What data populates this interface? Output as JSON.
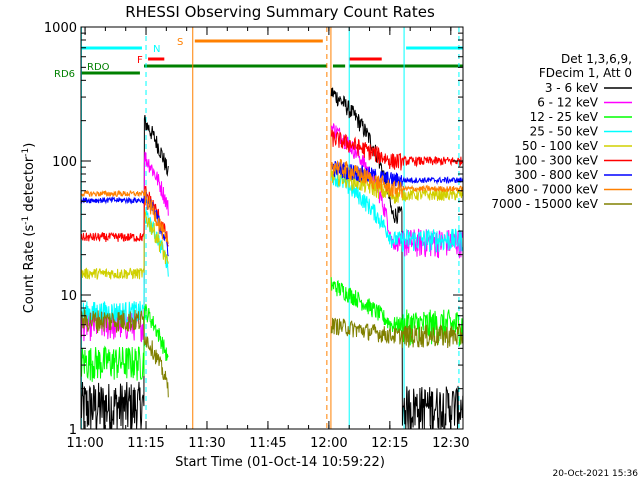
{
  "chart_data": {
    "type": "line",
    "title": "RHESSI Observing Summary Count Rates",
    "xlabel": "Start Time (01-Oct-14 10:59:22)",
    "ylabel_main": "Count Rate (s",
    "ylabel_sup1": "-1",
    "ylabel_mid": " detector",
    "ylabel_sup2": "-1",
    "ylabel_end": ")",
    "x_range_minutes": [
      0,
      94
    ],
    "ylim": [
      1,
      1000
    ],
    "log_y": true,
    "x_ticks": [
      {
        "v": 1,
        "label": "11:00"
      },
      {
        "v": 16,
        "label": "11:15"
      },
      {
        "v": 31,
        "label": "11:30"
      },
      {
        "v": 46,
        "label": "11:45"
      },
      {
        "v": 61,
        "label": "12:00"
      },
      {
        "v": 76,
        "label": "12:15"
      },
      {
        "v": 91,
        "label": "12:30"
      }
    ],
    "y_ticks": [
      {
        "v": 1,
        "label": "1"
      },
      {
        "v": 10,
        "label": "10"
      },
      {
        "v": 100,
        "label": "100"
      },
      {
        "v": 1000,
        "label": "1000"
      }
    ],
    "legend": {
      "header1": "Det 1,3,6,9,",
      "header2": "FDecim 1, Att 0",
      "placement": "right"
    },
    "series": [
      {
        "name": "3 - 6 keV",
        "color": "#000000",
        "base": 1.5,
        "noise": 0.5,
        "peak1": 200,
        "peak2": 330,
        "end2": 40
      },
      {
        "name": "6 - 12 keV",
        "color": "#ff00ff",
        "base": 6.0,
        "noise": 0.25,
        "peak1": 110,
        "peak2": 180,
        "end2": 25
      },
      {
        "name": "12 - 25 keV",
        "color": "#00ff00",
        "base": 3.2,
        "noise": 0.3,
        "peak1": 8,
        "peak2": 12,
        "end2": 6
      },
      {
        "name": "25 - 50 keV",
        "color": "#00ffff",
        "base": 7.5,
        "noise": 0.2,
        "peak1": 40,
        "peak2": 80,
        "end2": 26
      },
      {
        "name": "50 - 100 keV",
        "color": "#d0d000",
        "base": 14.5,
        "noise": 0.1,
        "peak1": 40,
        "peak2": 80,
        "end2": 56
      },
      {
        "name": "100 - 300 keV",
        "color": "#ff0000",
        "base": 27,
        "noise": 0.08,
        "peak1": 60,
        "peak2": 150,
        "end2": 100
      },
      {
        "name": "300 - 800 keV",
        "color": "#0000ff",
        "base": 51,
        "noise": 0.05,
        "peak1": 55,
        "peak2": 90,
        "end2": 72
      },
      {
        "name": "800 - 7000 keV",
        "color": "#ff8000",
        "base": 57,
        "noise": 0.05,
        "peak1": 55,
        "peak2": 95,
        "end2": 62
      },
      {
        "name": "7000 - 15000 keV",
        "color": "#808000",
        "base": 6.5,
        "noise": 0.2,
        "peak1": 5,
        "peak2": 6,
        "end2": 5
      }
    ],
    "flags": [
      {
        "label": "RD6",
        "color": "#008000",
        "segments": [
          [
            0,
            14.5
          ]
        ]
      },
      {
        "label": "RDO",
        "color": "#008000",
        "segments": [
          [
            15.5,
            60.5
          ],
          [
            62,
            65
          ],
          [
            66,
            94
          ]
        ]
      },
      {
        "label": "F",
        "color": "#ff0000",
        "segments": [
          [
            16.5,
            20.5
          ],
          [
            66,
            74
          ]
        ]
      },
      {
        "label": "N",
        "color": "#00ffff",
        "segments": [
          [
            0,
            15
          ],
          [
            80,
            94
          ]
        ]
      },
      {
        "label": "S",
        "color": "#ff8000",
        "segments": [
          [
            28,
            59.5
          ]
        ]
      }
    ],
    "vlines": [
      {
        "x": 0.1,
        "color": "#00ffff",
        "style": "solid"
      },
      {
        "x": 16,
        "color": "#00ffff",
        "style": "dashed"
      },
      {
        "x": 27.5,
        "color": "#ff8000",
        "style": "solid"
      },
      {
        "x": 60.5,
        "color": "#ff8000",
        "style": "dashed"
      },
      {
        "x": 61.5,
        "color": "#ff8000",
        "style": "solid"
      },
      {
        "x": 66,
        "color": "#00ffff",
        "style": "solid"
      },
      {
        "x": 79.5,
        "color": "#00ffff",
        "style": "solid"
      },
      {
        "x": 93,
        "color": "#00ffff",
        "style": "dashed"
      }
    ],
    "data_gaps": [
      [
        21.5,
        61.5
      ]
    ]
  },
  "footer": {
    "date_stamp": "20-Oct-2021 15:36"
  }
}
